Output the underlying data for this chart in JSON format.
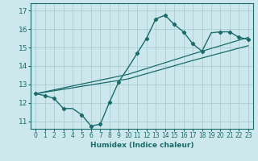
{
  "xlabel": "Humidex (Indice chaleur)",
  "ylabel": "",
  "bg_color": "#cce8ec",
  "grid_color": "#aaccd4",
  "line_color": "#1a6b6b",
  "xlim": [
    -0.5,
    23.5
  ],
  "ylim": [
    10.6,
    17.4
  ],
  "xticks": [
    0,
    1,
    2,
    3,
    4,
    5,
    6,
    7,
    8,
    9,
    10,
    11,
    12,
    13,
    14,
    15,
    16,
    17,
    18,
    19,
    20,
    21,
    22,
    23
  ],
  "yticks": [
    11,
    12,
    13,
    14,
    15,
    16,
    17
  ],
  "curve1_x": [
    0,
    1,
    2,
    3,
    4,
    5,
    6,
    7,
    8,
    9,
    10,
    11,
    12,
    13,
    14,
    15,
    16,
    17,
    18,
    19,
    20,
    21,
    22,
    23
  ],
  "curve1_y": [
    12.5,
    12.4,
    12.25,
    11.7,
    11.7,
    11.35,
    10.75,
    10.85,
    12.05,
    13.15,
    13.9,
    14.7,
    15.5,
    16.55,
    16.75,
    16.25,
    15.85,
    15.2,
    14.8,
    15.8,
    15.85,
    15.85,
    15.55,
    15.45
  ],
  "line2_x": [
    0,
    10,
    17,
    23
  ],
  "line2_y": [
    12.5,
    13.55,
    14.65,
    15.55
  ],
  "line3_x": [
    0,
    10,
    17,
    23
  ],
  "line3_y": [
    12.5,
    13.3,
    14.3,
    15.1
  ],
  "marker_x": [
    0,
    1,
    2,
    3,
    5,
    6,
    7,
    8,
    9,
    11,
    12,
    13,
    14,
    15,
    16,
    17,
    18,
    20,
    21,
    22,
    23
  ],
  "marker_y": [
    12.5,
    12.4,
    12.25,
    11.7,
    11.35,
    10.75,
    10.85,
    12.05,
    13.15,
    14.7,
    15.5,
    16.55,
    16.75,
    16.25,
    15.85,
    15.2,
    14.8,
    15.85,
    15.85,
    15.55,
    15.45
  ]
}
